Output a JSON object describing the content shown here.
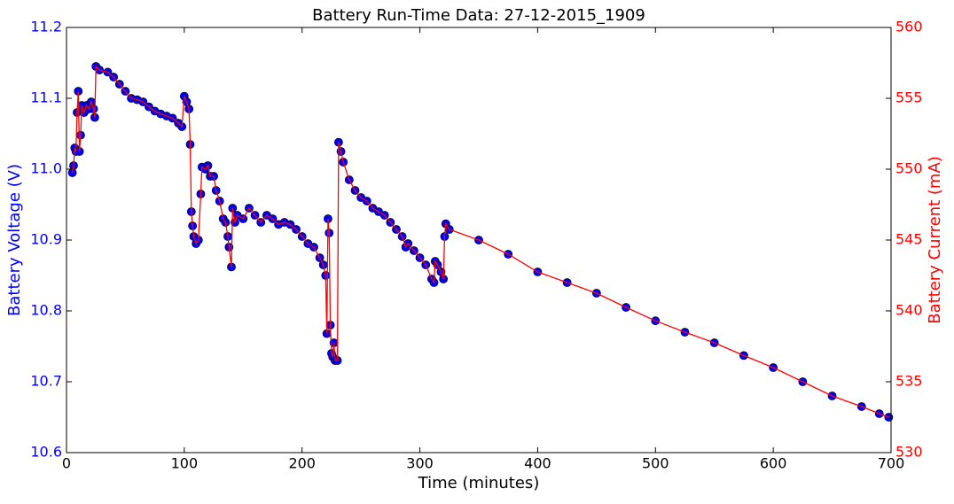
{
  "chart_data": {
    "type": "line",
    "title": "Battery Run-Time Data: 27-12-2015_1909",
    "xlabel": "Time (minutes)",
    "ylabel": "Battery Voltage (V)",
    "y2label": "Battery Current (mA)",
    "ylabel_color": "#0000ff",
    "y2label_color": "#ff0000",
    "xlim": [
      0,
      700
    ],
    "xticks": [
      0,
      100,
      200,
      300,
      400,
      500,
      600,
      700
    ],
    "ylim": [
      10.6,
      11.2
    ],
    "yticks": [
      10.6,
      10.7,
      10.8,
      10.9,
      {
        "value": 11,
        "label": "11.0"
      },
      11.1,
      11.2
    ],
    "y2lim": [
      530,
      560
    ],
    "y2ticks": [
      530,
      535,
      540,
      545,
      550,
      555,
      560
    ],
    "x": [
      5,
      6,
      7,
      8,
      9,
      10,
      11,
      12,
      13,
      15,
      17,
      19,
      21,
      23,
      24,
      25,
      28,
      35,
      40,
      45,
      50,
      55,
      60,
      65,
      70,
      75,
      80,
      85,
      90,
      95,
      98,
      100,
      102,
      104,
      105,
      106,
      107,
      108,
      110,
      112,
      114,
      115,
      118,
      120,
      122,
      125,
      127,
      130,
      133,
      135,
      137,
      138,
      140,
      141,
      143,
      145,
      150,
      155,
      160,
      165,
      170,
      175,
      180,
      185,
      190,
      195,
      200,
      205,
      210,
      215,
      218,
      220,
      221,
      222,
      223,
      224,
      225,
      226,
      227,
      228,
      230,
      231,
      233,
      235,
      240,
      245,
      250,
      255,
      260,
      265,
      270,
      275,
      280,
      285,
      288,
      290,
      295,
      300,
      305,
      310,
      312,
      313,
      315,
      318,
      320,
      321,
      322,
      325,
      350,
      375,
      400,
      425,
      450,
      475,
      500,
      525,
      550,
      575,
      600,
      625,
      650,
      675,
      690,
      698
    ],
    "series": [
      {
        "type": "scatter",
        "color": "#0000ff",
        "values": [
          10.995,
          11.005,
          11.03,
          11.025,
          11.08,
          11.11,
          11.025,
          11.048,
          11.09,
          11.08,
          11.09,
          11.085,
          11.095,
          11.085,
          11.073,
          11.145,
          11.14,
          11.137,
          11.13,
          11.12,
          11.11,
          11.1,
          11.098,
          11.095,
          11.088,
          11.082,
          11.078,
          11.075,
          11.072,
          11.065,
          11.06,
          11.103,
          11.095,
          11.085,
          11.035,
          10.94,
          10.92,
          10.905,
          10.895,
          10.9,
          10.965,
          11.003,
          11,
          11.005,
          10.99,
          10.99,
          10.97,
          10.955,
          10.93,
          10.925,
          10.905,
          10.89,
          10.862,
          10.945,
          10.925,
          10.935,
          10.93,
          10.945,
          10.935,
          10.925,
          10.935,
          10.93,
          10.922,
          10.925,
          10.922,
          10.915,
          10.905,
          10.895,
          10.89,
          10.875,
          10.865,
          10.85,
          10.768,
          10.93,
          10.91,
          10.78,
          10.74,
          10.735,
          10.755,
          10.73,
          10.73,
          11.038,
          11.025,
          11.01,
          10.985,
          10.97,
          10.96,
          10.955,
          10.945,
          10.94,
          10.935,
          10.925,
          10.915,
          10.905,
          10.89,
          10.895,
          10.885,
          10.875,
          10.865,
          10.845,
          10.84,
          10.87,
          10.865,
          10.855,
          10.845,
          10.905,
          10.923,
          10.915,
          10.9,
          10.88,
          10.855,
          10.84,
          10.825,
          10.805,
          10.786,
          10.77,
          10.755,
          10.737,
          10.72,
          10.7,
          10.68,
          10.665,
          10.655,
          10.65
        ]
      },
      {
        "type": "line",
        "color": "#ff0000",
        "axis": "y2",
        "values": [
          549.75,
          550.25,
          551.5,
          551.25,
          554,
          555.5,
          551.25,
          552.4,
          554.5,
          554,
          554.5,
          554.25,
          554.75,
          554.25,
          553.65,
          557.25,
          557,
          556.85,
          556.5,
          556,
          555.5,
          555,
          554.9,
          554.75,
          554.4,
          554.1,
          553.9,
          553.75,
          553.6,
          553.25,
          553,
          555.15,
          554.75,
          554.25,
          551.75,
          547,
          546,
          545.25,
          544.75,
          545,
          548.25,
          550.15,
          550,
          550.25,
          549.5,
          549.5,
          548.5,
          547.75,
          546.5,
          546.25,
          545.25,
          544.5,
          543.1,
          547.25,
          546.25,
          546.75,
          546.5,
          547.25,
          546.75,
          546.25,
          546.75,
          546.5,
          546.1,
          546.25,
          546.1,
          545.75,
          545.25,
          544.75,
          544.5,
          543.75,
          543.25,
          542.5,
          538.4,
          546.5,
          545.5,
          539,
          537,
          536.75,
          537.75,
          536.5,
          536.5,
          551.9,
          551.25,
          550.5,
          549.25,
          548.5,
          548,
          547.75,
          547.25,
          547,
          546.75,
          546.25,
          545.75,
          545.25,
          544.5,
          544.75,
          544.25,
          543.75,
          543.25,
          542.25,
          542,
          543.5,
          543.25,
          542.75,
          542.25,
          545.25,
          546.15,
          545.75,
          545,
          544,
          542.75,
          542,
          541.25,
          540.25,
          539.3,
          538.5,
          537.75,
          536.85,
          536,
          535,
          534,
          533.25,
          532.75,
          532.5
        ]
      }
    ]
  }
}
